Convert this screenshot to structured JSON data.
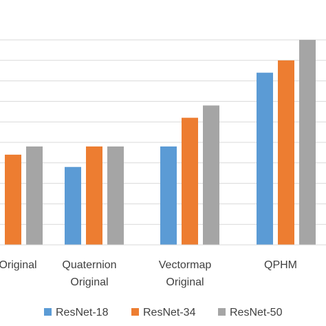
{
  "chart_data": {
    "type": "bar",
    "categories": [
      [
        "Original"
      ],
      [
        "Quaternion",
        "Original"
      ],
      [
        "Vectormap",
        "Original"
      ],
      [
        "QPHM"
      ]
    ],
    "series": [
      {
        "name": "ResNet-18",
        "color": "#5b9bd5",
        "values": [
          null,
          49,
          54,
          72
        ]
      },
      {
        "name": "ResNet-34",
        "color": "#ed7d31",
        "values": [
          52,
          54,
          61,
          75
        ]
      },
      {
        "name": "ResNet-50",
        "color": "#a5a5a5",
        "values": [
          54,
          54,
          64,
          80
        ]
      }
    ],
    "ylim": [
      30,
      80
    ],
    "grid": true,
    "legend_position": "bottom"
  }
}
